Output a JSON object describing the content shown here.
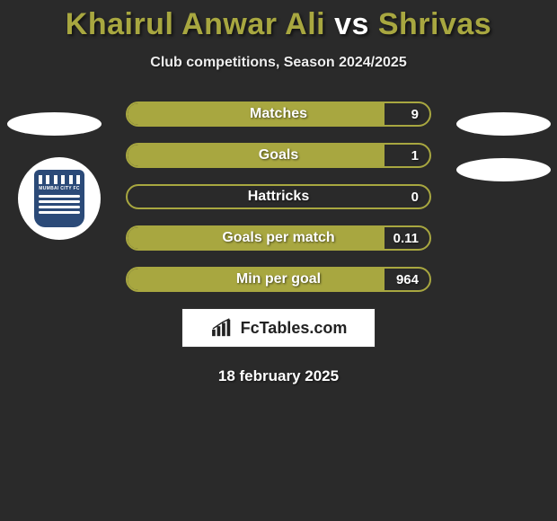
{
  "title": {
    "player1": "Khairul Anwar Ali",
    "vs": "vs",
    "player2": "Shrivas"
  },
  "subtitle": "Club competitions, Season 2024/2025",
  "stats": [
    {
      "label": "Matches",
      "value": "9",
      "fill_pct": 85
    },
    {
      "label": "Goals",
      "value": "1",
      "fill_pct": 85
    },
    {
      "label": "Hattricks",
      "value": "0",
      "fill_pct": 0
    },
    {
      "label": "Goals per match",
      "value": "0.11",
      "fill_pct": 85
    },
    {
      "label": "Min per goal",
      "value": "964",
      "fill_pct": 85
    }
  ],
  "colors": {
    "accent": "#a8a740",
    "background": "#2a2a2a",
    "text": "#ffffff"
  },
  "brand": {
    "name": "FcTables.com"
  },
  "club": {
    "name": "MUMBAI CITY FC"
  },
  "date": "18 february 2025"
}
